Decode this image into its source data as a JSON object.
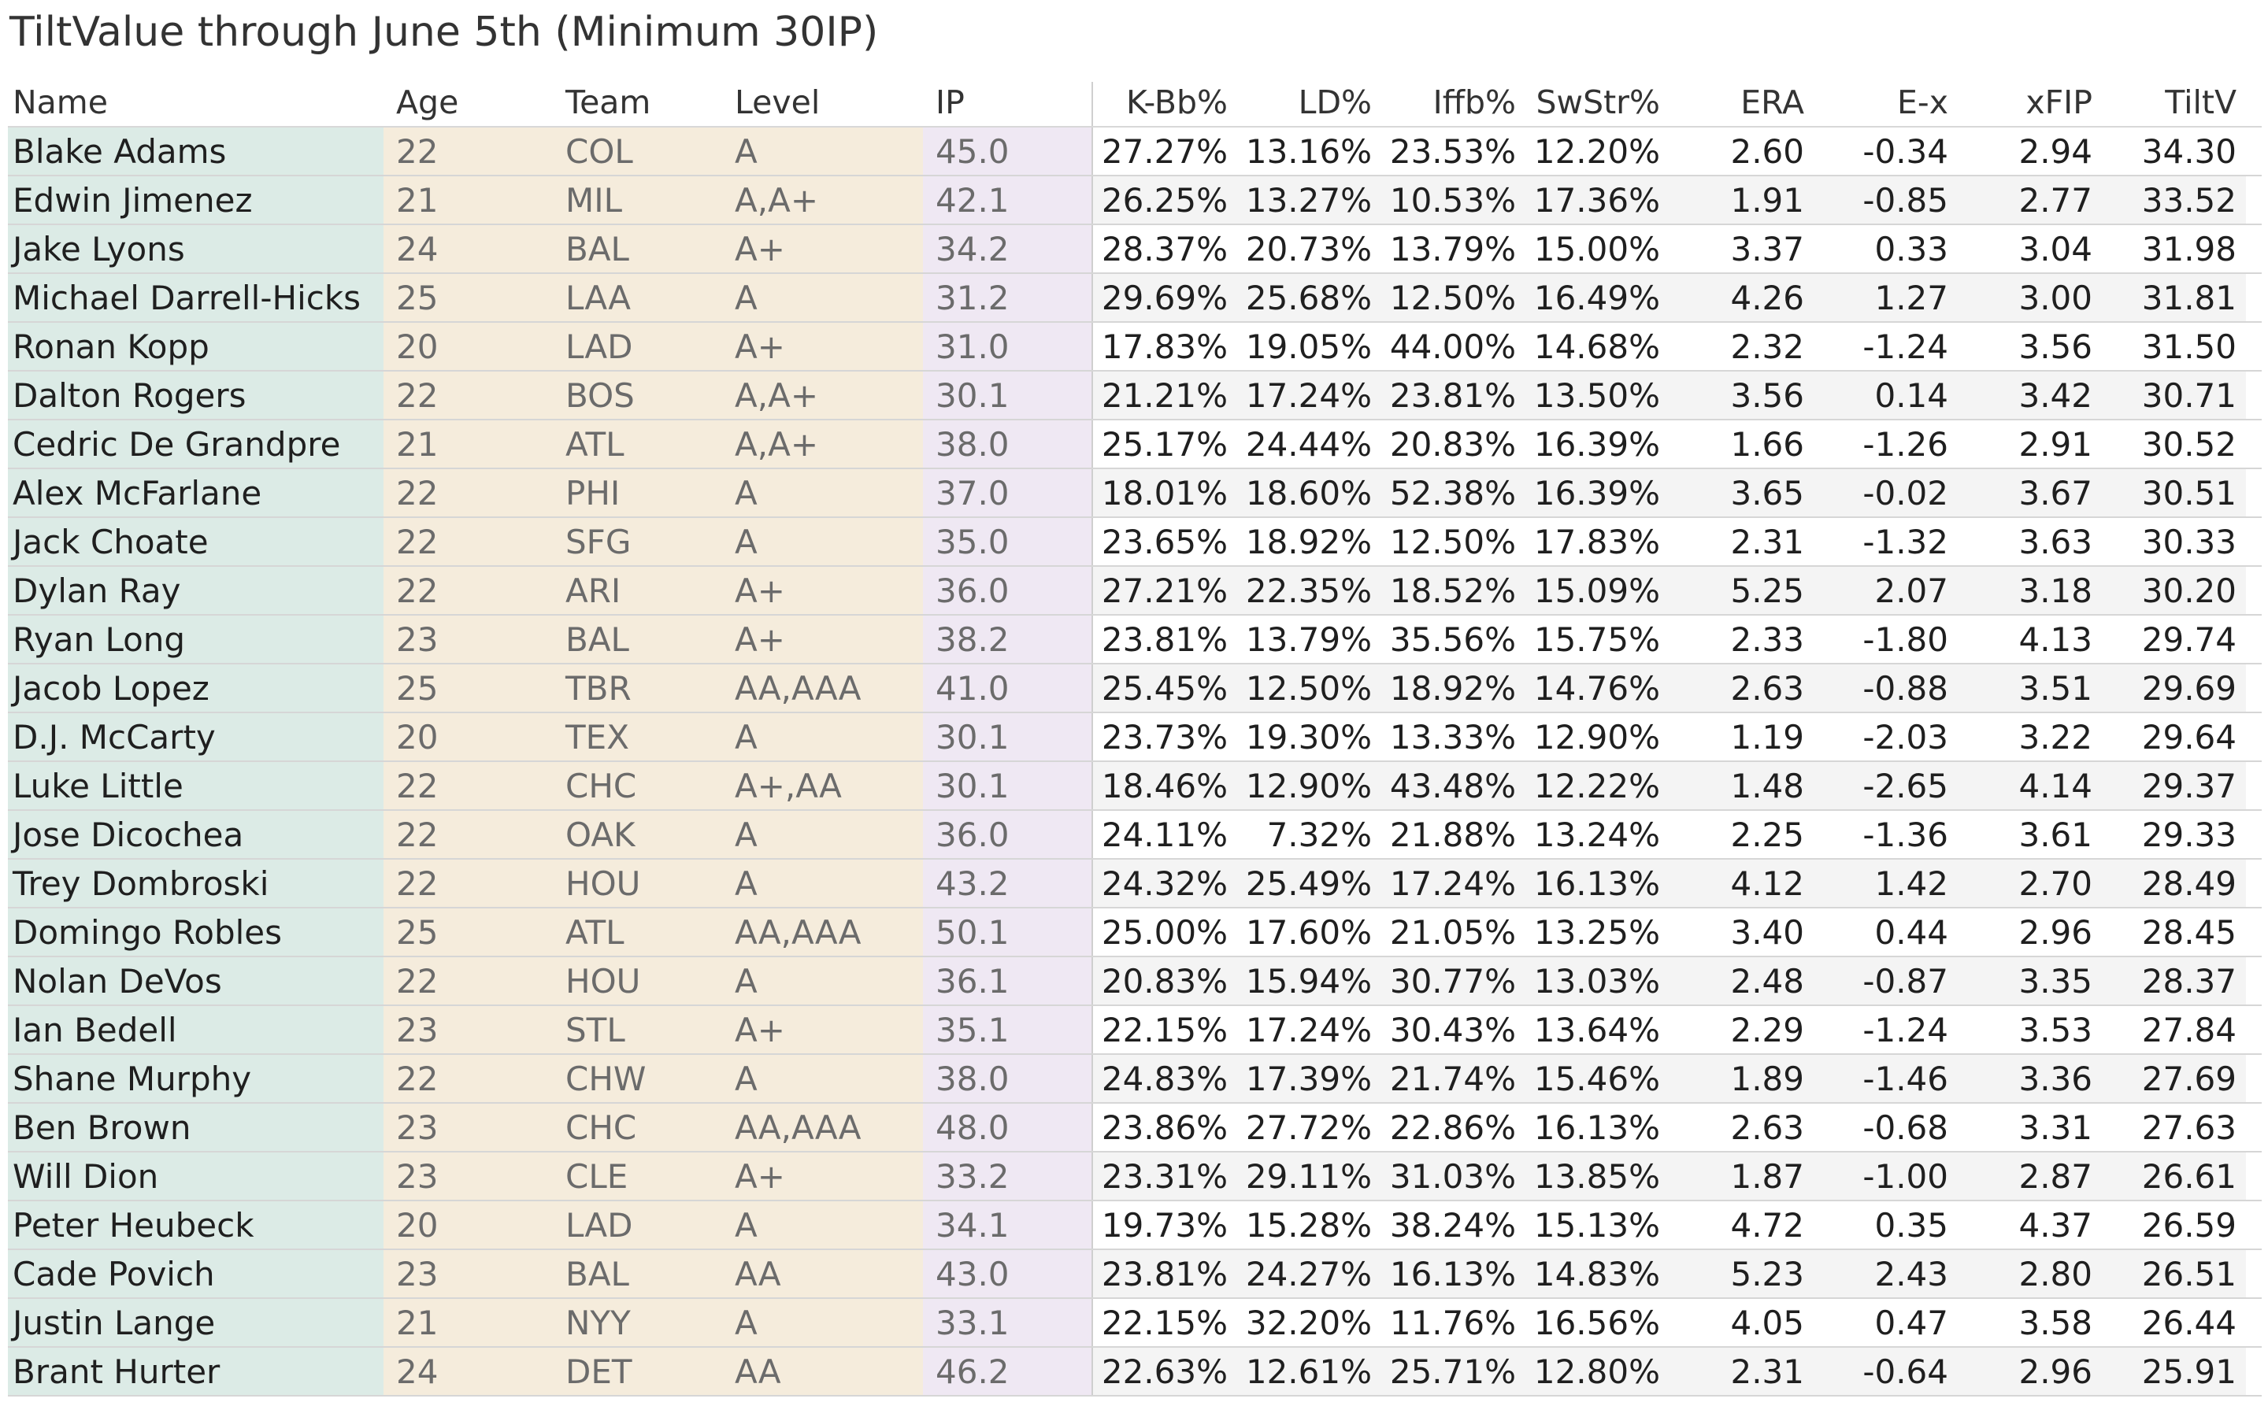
{
  "chart_data": {
    "type": "table",
    "title": "TiltValue through June 5th (Minimum 30IP)",
    "columns": [
      "Name",
      "Age",
      "Team",
      "Level",
      "IP",
      "K-Bb%",
      "LD%",
      "Iffb%",
      "SwStr%",
      "ERA",
      "E-x",
      "xFIP",
      "TiltV"
    ],
    "rows": [
      [
        "Blake Adams",
        "22",
        "COL",
        "A",
        "45.0",
        "27.27%",
        "13.16%",
        "23.53%",
        "12.20%",
        "2.60",
        "-0.34",
        "2.94",
        "34.30"
      ],
      [
        "Edwin Jimenez",
        "21",
        "MIL",
        "A,A+",
        "42.1",
        "26.25%",
        "13.27%",
        "10.53%",
        "17.36%",
        "1.91",
        "-0.85",
        "2.77",
        "33.52"
      ],
      [
        "Jake Lyons",
        "24",
        "BAL",
        "A+",
        "34.2",
        "28.37%",
        "20.73%",
        "13.79%",
        "15.00%",
        "3.37",
        "0.33",
        "3.04",
        "31.98"
      ],
      [
        "Michael Darrell-Hicks",
        "25",
        "LAA",
        "A",
        "31.2",
        "29.69%",
        "25.68%",
        "12.50%",
        "16.49%",
        "4.26",
        "1.27",
        "3.00",
        "31.81"
      ],
      [
        "Ronan Kopp",
        "20",
        "LAD",
        "A+",
        "31.0",
        "17.83%",
        "19.05%",
        "44.00%",
        "14.68%",
        "2.32",
        "-1.24",
        "3.56",
        "31.50"
      ],
      [
        "Dalton Rogers",
        "22",
        "BOS",
        "A,A+",
        "30.1",
        "21.21%",
        "17.24%",
        "23.81%",
        "13.50%",
        "3.56",
        "0.14",
        "3.42",
        "30.71"
      ],
      [
        "Cedric De Grandpre",
        "21",
        "ATL",
        "A,A+",
        "38.0",
        "25.17%",
        "24.44%",
        "20.83%",
        "16.39%",
        "1.66",
        "-1.26",
        "2.91",
        "30.52"
      ],
      [
        "Alex McFarlane",
        "22",
        "PHI",
        "A",
        "37.0",
        "18.01%",
        "18.60%",
        "52.38%",
        "16.39%",
        "3.65",
        "-0.02",
        "3.67",
        "30.51"
      ],
      [
        "Jack Choate",
        "22",
        "SFG",
        "A",
        "35.0",
        "23.65%",
        "18.92%",
        "12.50%",
        "17.83%",
        "2.31",
        "-1.32",
        "3.63",
        "30.33"
      ],
      [
        "Dylan Ray",
        "22",
        "ARI",
        "A+",
        "36.0",
        "27.21%",
        "22.35%",
        "18.52%",
        "15.09%",
        "5.25",
        "2.07",
        "3.18",
        "30.20"
      ],
      [
        "Ryan Long",
        "23",
        "BAL",
        "A+",
        "38.2",
        "23.81%",
        "13.79%",
        "35.56%",
        "15.75%",
        "2.33",
        "-1.80",
        "4.13",
        "29.74"
      ],
      [
        "Jacob Lopez",
        "25",
        "TBR",
        "AA,AAA",
        "41.0",
        "25.45%",
        "12.50%",
        "18.92%",
        "14.76%",
        "2.63",
        "-0.88",
        "3.51",
        "29.69"
      ],
      [
        "D.J. McCarty",
        "20",
        "TEX",
        "A",
        "30.1",
        "23.73%",
        "19.30%",
        "13.33%",
        "12.90%",
        "1.19",
        "-2.03",
        "3.22",
        "29.64"
      ],
      [
        "Luke Little",
        "22",
        "CHC",
        "A+,AA",
        "30.1",
        "18.46%",
        "12.90%",
        "43.48%",
        "12.22%",
        "1.48",
        "-2.65",
        "4.14",
        "29.37"
      ],
      [
        "Jose Dicochea",
        "22",
        "OAK",
        "A",
        "36.0",
        "24.11%",
        "7.32%",
        "21.88%",
        "13.24%",
        "2.25",
        "-1.36",
        "3.61",
        "29.33"
      ],
      [
        "Trey Dombroski",
        "22",
        "HOU",
        "A",
        "43.2",
        "24.32%",
        "25.49%",
        "17.24%",
        "16.13%",
        "4.12",
        "1.42",
        "2.70",
        "28.49"
      ],
      [
        "Domingo Robles",
        "25",
        "ATL",
        "AA,AAA",
        "50.1",
        "25.00%",
        "17.60%",
        "21.05%",
        "13.25%",
        "3.40",
        "0.44",
        "2.96",
        "28.45"
      ],
      [
        "Nolan DeVos",
        "22",
        "HOU",
        "A",
        "36.1",
        "20.83%",
        "15.94%",
        "30.77%",
        "13.03%",
        "2.48",
        "-0.87",
        "3.35",
        "28.37"
      ],
      [
        "Ian Bedell",
        "23",
        "STL",
        "A+",
        "35.1",
        "22.15%",
        "17.24%",
        "30.43%",
        "13.64%",
        "2.29",
        "-1.24",
        "3.53",
        "27.84"
      ],
      [
        "Shane Murphy",
        "22",
        "CHW",
        "A",
        "38.0",
        "24.83%",
        "17.39%",
        "21.74%",
        "15.46%",
        "1.89",
        "-1.46",
        "3.36",
        "27.69"
      ],
      [
        "Ben Brown",
        "23",
        "CHC",
        "AA,AAA",
        "48.0",
        "23.86%",
        "27.72%",
        "22.86%",
        "16.13%",
        "2.63",
        "-0.68",
        "3.31",
        "27.63"
      ],
      [
        "Will Dion",
        "23",
        "CLE",
        "A+",
        "33.2",
        "23.31%",
        "29.11%",
        "31.03%",
        "13.85%",
        "1.87",
        "-1.00",
        "2.87",
        "26.61"
      ],
      [
        "Peter Heubeck",
        "20",
        "LAD",
        "A",
        "34.1",
        "19.73%",
        "15.28%",
        "38.24%",
        "15.13%",
        "4.72",
        "0.35",
        "4.37",
        "26.59"
      ],
      [
        "Cade Povich",
        "23",
        "BAL",
        "AA",
        "43.0",
        "23.81%",
        "24.27%",
        "16.13%",
        "14.83%",
        "5.23",
        "2.43",
        "2.80",
        "26.51"
      ],
      [
        "Justin Lange",
        "21",
        "NYY",
        "A",
        "33.1",
        "22.15%",
        "32.20%",
        "11.76%",
        "16.56%",
        "4.05",
        "0.47",
        "3.58",
        "26.44"
      ],
      [
        "Brant Hurter",
        "24",
        "DET",
        "AA",
        "46.2",
        "22.63%",
        "12.61%",
        "25.71%",
        "12.80%",
        "2.31",
        "-0.64",
        "2.96",
        "25.91"
      ]
    ]
  },
  "colors": {
    "name_bg": "#dcebe6",
    "info_bg": "#f5ecdc",
    "ip_bg": "#efe8f3",
    "stripe_bg": "#f4f4f4"
  }
}
